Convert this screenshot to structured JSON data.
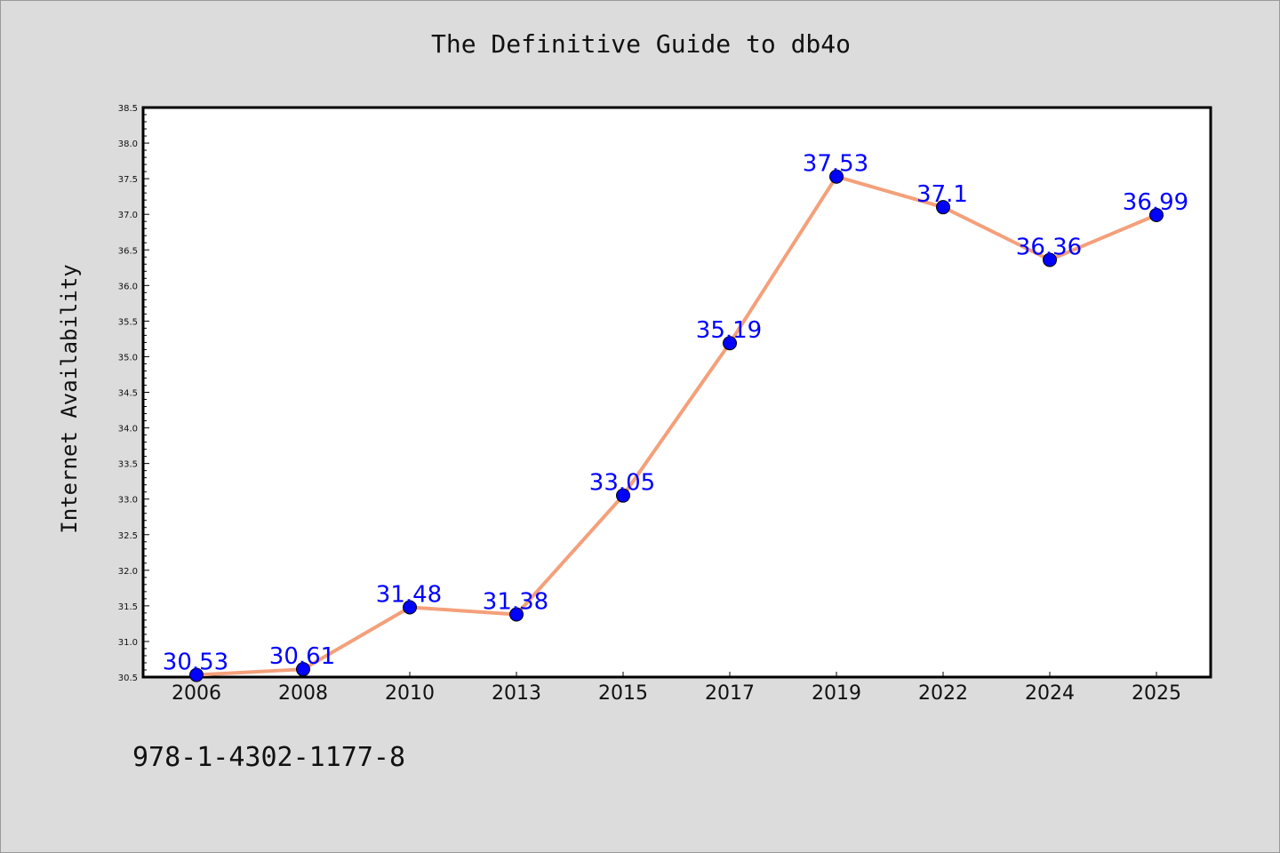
{
  "chart_data": {
    "type": "line",
    "title": "The Definitive Guide to db4o",
    "xlabel": "",
    "ylabel": "Internet Availability",
    "categories": [
      "2006",
      "2008",
      "2010",
      "2013",
      "2015",
      "2017",
      "2019",
      "2022",
      "2024",
      "2025"
    ],
    "series": [
      {
        "values": [
          30.53,
          30.61,
          31.48,
          31.38,
          33.05,
          35.19,
          37.53,
          37.1,
          36.36,
          36.99
        ],
        "line_color": "#f4a07a",
        "marker_color": "#0000ff"
      }
    ],
    "data_labels": [
      "30.53",
      "30.61",
      "31.48",
      "31.38",
      "33.05",
      "35.19",
      "37.53",
      "37.1",
      "36.36",
      "36.99"
    ],
    "ylim": [
      30.5,
      38.5
    ],
    "yticks": [
      "30.5",
      "31.0",
      "31.5",
      "32.0",
      "32.5",
      "33.0",
      "33.5",
      "34.0",
      "34.5",
      "35.0",
      "35.5",
      "36.0",
      "36.5",
      "37.0",
      "37.5",
      "38.0",
      "38.5"
    ],
    "grid": false,
    "legend": "none"
  },
  "footer": {
    "isbn": "978-1-4302-1177-8"
  }
}
